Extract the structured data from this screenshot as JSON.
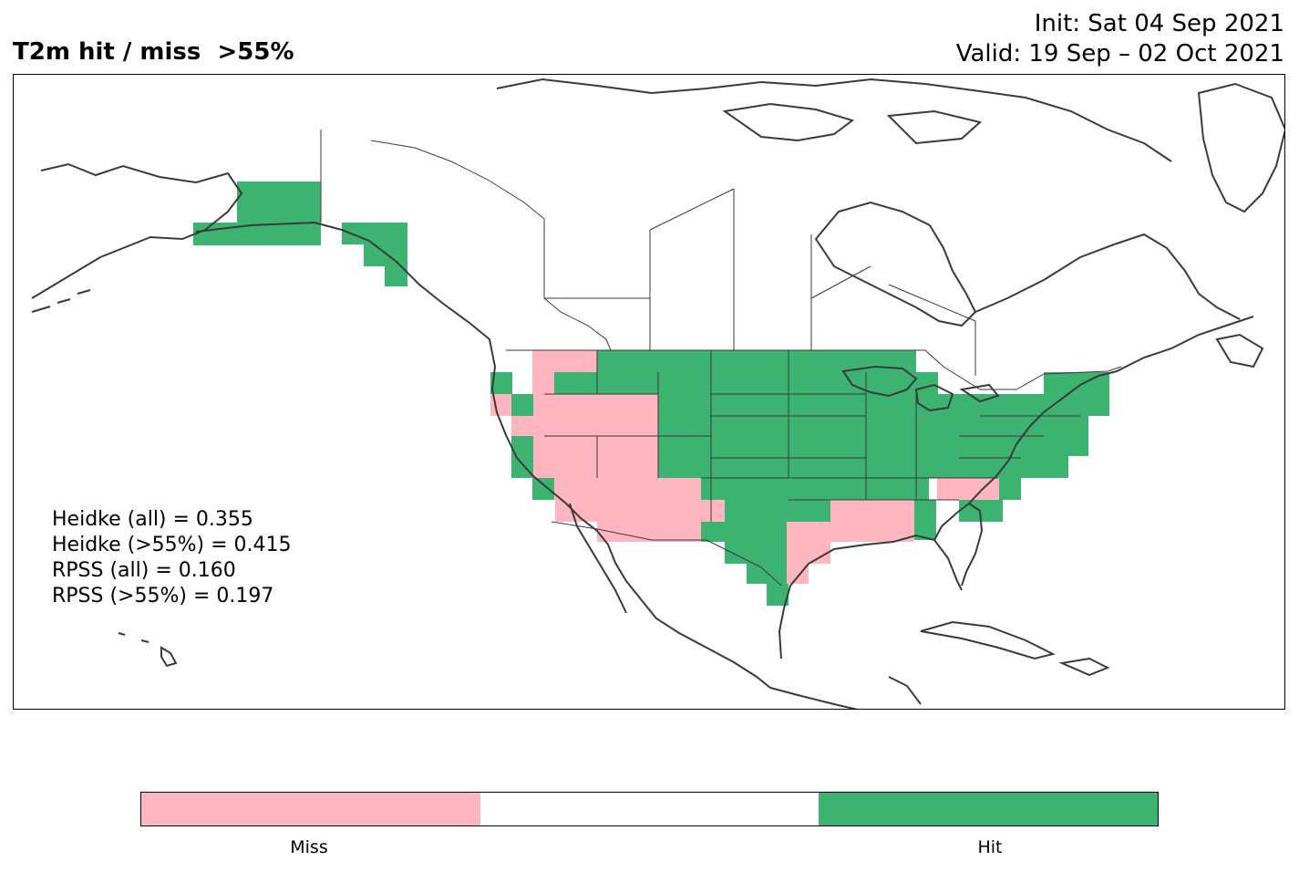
{
  "header": {
    "title": "T2m hit / miss  >55%",
    "init": "Init: Sat 04 Sep 2021",
    "valid": "Valid: 19 Sep – 02 Oct 2021"
  },
  "stats": {
    "heidke_all": "Heidke (all) = 0.355",
    "heidke_55": "Heidke (>55%) = 0.415",
    "rpss_all": "RPSS (all) = 0.160",
    "rpss_55": "RPSS (>55%) = 0.197"
  },
  "legend": {
    "miss_label": "Miss",
    "hit_label": "Hit"
  },
  "colors": {
    "miss": "#ffb6c1",
    "neutral": "#ffffff",
    "hit": "#3cb371",
    "border": "#3a3a3a"
  }
}
